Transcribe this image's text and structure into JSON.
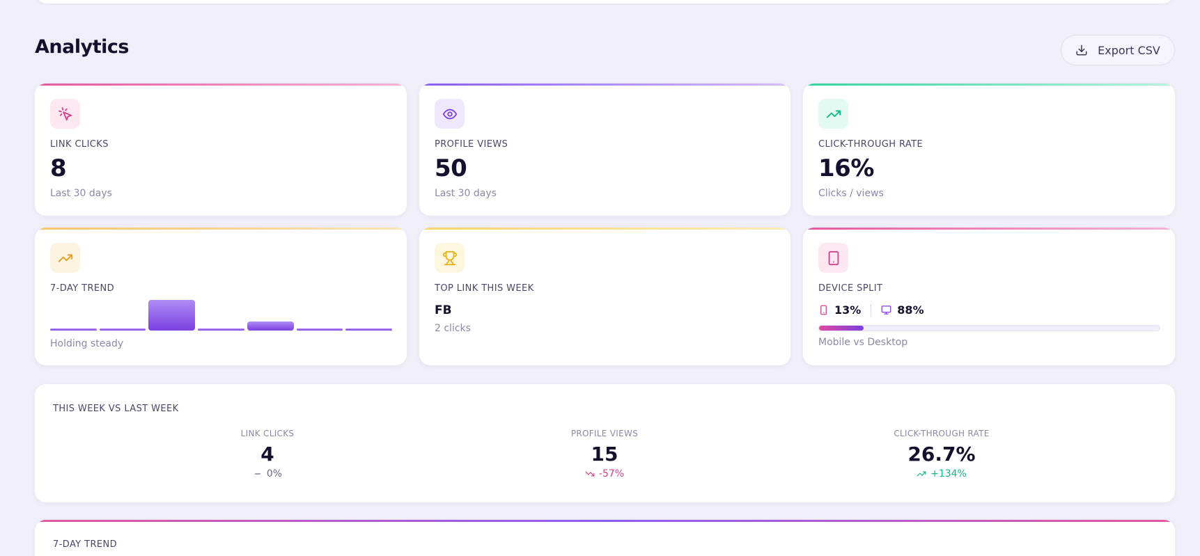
{
  "header": {
    "title": "Analytics",
    "export_label": "Export CSV"
  },
  "stats": [
    {
      "label": "LINK CLICKS",
      "value": "8",
      "sub": "Last 30 days",
      "icon": "cursor-click-icon",
      "accent": "#e6579f"
    },
    {
      "label": "PROFILE VIEWS",
      "value": "50",
      "sub": "Last 30 days",
      "icon": "eye-icon",
      "accent": "#8b5cf6"
    },
    {
      "label": "CLICK-THROUGH RATE",
      "value": "16%",
      "sub": "Clicks / views",
      "icon": "trending-up-icon",
      "accent": "#34d3a0"
    }
  ],
  "trend": {
    "label": "7-DAY TREND",
    "sub": "Holding steady",
    "values": [
      0,
      0,
      2,
      0,
      0.6,
      0,
      0
    ],
    "icon": "trending-up-icon"
  },
  "top_link": {
    "label": "TOP LINK THIS WEEK",
    "name": "FB",
    "clicks": "2 clicks",
    "icon": "trophy-icon"
  },
  "device_split": {
    "label": "DEVICE SPLIT",
    "mobile": "13%",
    "desktop": "88%",
    "mobile_fraction": 0.13,
    "sub": "Mobile vs Desktop",
    "icon": "tablet-icon"
  },
  "week": {
    "title": "THIS WEEK VS LAST WEEK",
    "cols": [
      {
        "label": "LINK CLICKS",
        "value": "4",
        "change": "0%",
        "trend": "flat",
        "color": "#6b6885"
      },
      {
        "label": "PROFILE VIEWS",
        "value": "15",
        "change": "-57%",
        "trend": "down",
        "color": "#d63d8a"
      },
      {
        "label": "CLICK-THROUGH RATE",
        "value": "26.7%",
        "change": "+134%",
        "trend": "up",
        "color": "#12b886"
      }
    ]
  },
  "bottom": {
    "title": "7-DAY TREND"
  }
}
